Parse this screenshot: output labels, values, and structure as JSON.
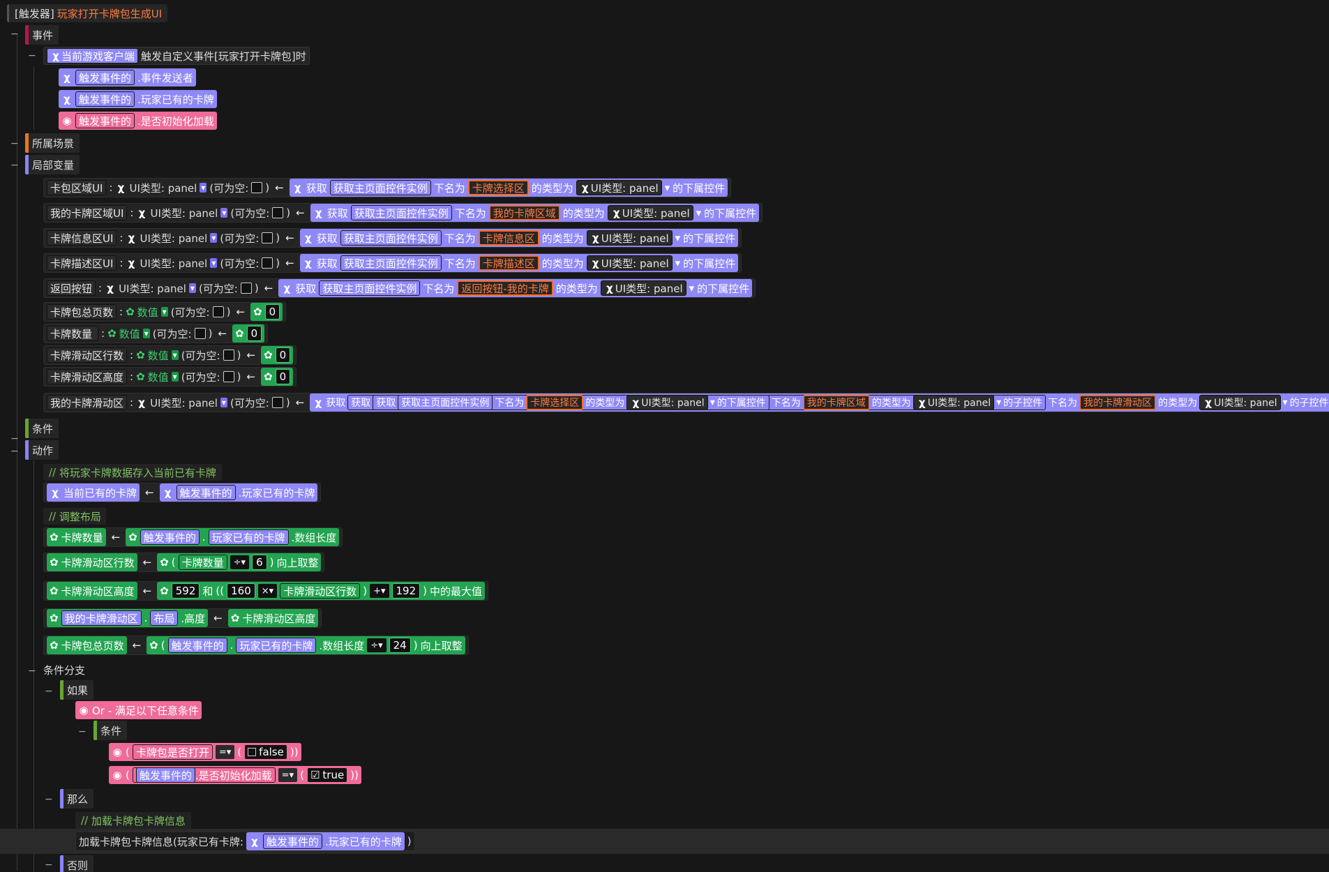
{
  "trigger": {
    "prefix": "[触发器]",
    "name": "玩家打开卡牌包生成UI"
  },
  "sections": {
    "event": "事件",
    "scene": "所属场景",
    "local_vars": "局部变量",
    "conditions": "条件",
    "actions": "动作"
  },
  "event": {
    "source": "当前游戏客户端",
    "desc": "触发自定义事件[玩家打开卡牌包]时",
    "params": [
      {
        "ref": "触发事件的",
        "field": ".事件发送者"
      },
      {
        "ref": "触发事件的",
        "field": ".玩家已有的卡牌"
      },
      {
        "ref": "触发事件的",
        "field": ".是否初始化加载"
      }
    ]
  },
  "common": {
    "colon": ":",
    "nullable": "(可为空:",
    "nullable_end": ")",
    "arrow": "←",
    "get": "获取",
    "main_page": "获取主页面控件实例",
    "named": "下名为",
    "type_is": "的类型为",
    "ui_panel": "UI类型: panel",
    "child_ctrl": "的下属控件",
    "sub_ctrl": "的子控件",
    "number": "数值",
    "zero": "0"
  },
  "local_vars": [
    {
      "name": "卡包区域UI",
      "target": "卡牌选择区"
    },
    {
      "name": "我的卡牌区域UI",
      "target": "我的卡牌区域"
    },
    {
      "name": "卡牌信息区UI",
      "target": "卡牌信息区"
    },
    {
      "name": "卡牌描述区UI",
      "target": "卡牌描述区"
    },
    {
      "name": "返回按钮",
      "target": "返回按钮-我的卡牌"
    }
  ],
  "num_vars": [
    "卡牌包总页数",
    "卡牌数量",
    "卡牌滑动区行数",
    "卡牌滑动区高度"
  ],
  "scroll_var": {
    "name": "我的卡牌滑动区",
    "t1": "卡牌选择区",
    "t2": "我的卡牌区域",
    "t3": "我的卡牌滑动区"
  },
  "actions": {
    "comment1": "将玩家卡牌数据存入当前已有卡牌",
    "current_cards": "当前已有的卡牌",
    "comment2": "调整布局",
    "card_count": "卡牌数量",
    "player_cards": "玩家已有的卡牌",
    "array_len": ".数组长度",
    "rows": "卡牌滑动区行数",
    "div": "÷",
    "six": "6",
    "ceil": "向上取整",
    "height": "卡牌滑动区高度",
    "v592": "592",
    "and": "和",
    "v160": "160",
    "mul": "×",
    "plus": "+",
    "v192": "192",
    "max": "中的最大值",
    "scroll": "我的卡牌滑动区",
    "layout": "布局",
    "dot_height": ".高度",
    "pages": "卡牌包总页数",
    "v24": "24",
    "branch": "条件分支",
    "if": "如果",
    "or": "Or - 满足以下任意条件",
    "cond": "条件",
    "is_open": "卡牌包是否打开",
    "eq": "=",
    "false": "false",
    "is_init": ".是否初始化加载",
    "true": "true",
    "then": "那么",
    "comment3": "加载卡牌包卡牌信息",
    "load_call": "加载卡牌包卡牌信息(玩家已有卡牌:",
    "close_paren": ")",
    "else": "否则"
  }
}
